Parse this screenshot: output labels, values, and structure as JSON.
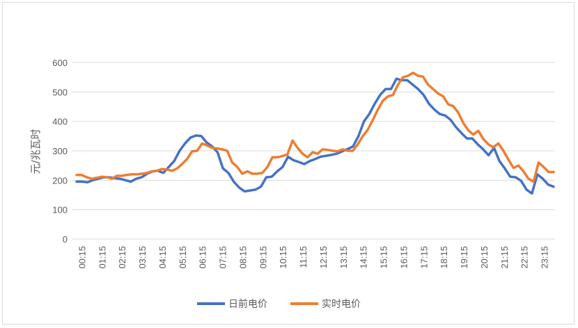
{
  "chart_data": {
    "type": "line",
    "ylabel": "元/兆瓦时",
    "ylim": [
      0,
      600
    ],
    "yticks": [
      0,
      100,
      200,
      300,
      400,
      500,
      600
    ],
    "grid": "horizontal",
    "legend_position": "bottom",
    "x_tick_labels": [
      "00:15",
      "01:15",
      "02:15",
      "03:15",
      "04:15",
      "05:15",
      "06:15",
      "07:15",
      "08:15",
      "09:15",
      "10:15",
      "11:15",
      "12:15",
      "13:15",
      "14:15",
      "15:15",
      "16:15",
      "17:15",
      "18:15",
      "19:15",
      "20:15",
      "21:15",
      "22:15",
      "23:15"
    ],
    "series": [
      {
        "name": "日前电价",
        "color": "#4472C4",
        "values": [
          195,
          195,
          193,
          200,
          205,
          210,
          210,
          207,
          205,
          200,
          195,
          205,
          210,
          222,
          230,
          232,
          225,
          245,
          265,
          300,
          325,
          345,
          352,
          350,
          328,
          315,
          295,
          240,
          225,
          195,
          175,
          162,
          165,
          168,
          178,
          210,
          212,
          230,
          245,
          280,
          268,
          262,
          255,
          265,
          272,
          280,
          283,
          286,
          290,
          298,
          306,
          315,
          350,
          400,
          425,
          460,
          490,
          510,
          510,
          545,
          540,
          540,
          525,
          510,
          490,
          460,
          440,
          425,
          420,
          405,
          380,
          360,
          342,
          342,
          322,
          305,
          285,
          310,
          265,
          240,
          212,
          210,
          198,
          168,
          155,
          220,
          205,
          185,
          178
        ]
      },
      {
        "name": "实时电价",
        "color": "#ED7D31",
        "values": [
          218,
          218,
          210,
          205,
          208,
          212,
          210,
          205,
          215,
          215,
          218,
          220,
          220,
          222,
          225,
          230,
          232,
          238,
          236,
          232,
          240,
          255,
          272,
          298,
          300,
          325,
          318,
          310,
          308,
          305,
          300,
          260,
          245,
          222,
          230,
          222,
          222,
          225,
          245,
          278,
          278,
          282,
          288,
          335,
          310,
          290,
          278,
          295,
          290,
          305,
          303,
          300,
          298,
          305,
          300,
          300,
          322,
          350,
          372,
          405,
          440,
          470,
          485,
          490,
          525,
          550,
          555,
          565,
          555,
          552,
          525,
          510,
          495,
          485,
          458,
          452,
          430,
          395,
          370,
          355,
          368,
          340,
          322,
          312,
          325,
          300,
          270,
          242,
          250,
          230,
          205,
          195,
          260,
          245,
          228,
          228
        ]
      }
    ]
  }
}
